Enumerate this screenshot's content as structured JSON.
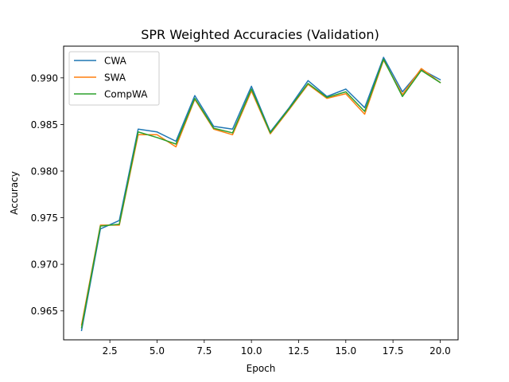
{
  "chart_data": {
    "type": "line",
    "title": "SPR Weighted Accuracies (Validation)",
    "xlabel": "Epoch",
    "ylabel": "Accuracy",
    "xlim": [
      0.05,
      20.95
    ],
    "ylim": [
      0.9619,
      0.9934
    ],
    "xticks": [
      2.5,
      5.0,
      7.5,
      10.0,
      12.5,
      15.0,
      17.5,
      20.0
    ],
    "xtick_labels": [
      "2.5",
      "5.0",
      "7.5",
      "10.0",
      "12.5",
      "15.0",
      "17.5",
      "20.0"
    ],
    "yticks": [
      0.965,
      0.97,
      0.975,
      0.98,
      0.985,
      0.99
    ],
    "ytick_labels": [
      "0.965",
      "0.970",
      "0.975",
      "0.980",
      "0.985",
      "0.990"
    ],
    "grid": false,
    "legend": "top-left",
    "x": [
      1,
      2,
      3,
      4,
      5,
      6,
      7,
      8,
      9,
      10,
      11,
      12,
      13,
      14,
      15,
      16,
      17,
      18,
      19,
      20
    ],
    "series": [
      {
        "name": "CWA",
        "color": "#1f77b4",
        "values": [
          0.9629,
          0.9738,
          0.9747,
          0.9845,
          0.9842,
          0.9832,
          0.9881,
          0.9848,
          0.9845,
          0.9891,
          0.9842,
          0.9868,
          0.9897,
          0.988,
          0.9888,
          0.9868,
          0.9922,
          0.9885,
          0.9909,
          0.9898
        ]
      },
      {
        "name": "SWA",
        "color": "#ff7f0e",
        "values": [
          0.9635,
          0.9742,
          0.9742,
          0.9839,
          0.9839,
          0.9826,
          0.9877,
          0.9845,
          0.9839,
          0.9886,
          0.984,
          0.9866,
          0.9893,
          0.9878,
          0.9883,
          0.9861,
          0.9919,
          0.9882,
          0.991,
          0.9895
        ]
      },
      {
        "name": "CompWA",
        "color": "#2ca02c",
        "values": [
          0.9632,
          0.9741,
          0.9743,
          0.9842,
          0.9836,
          0.9829,
          0.9878,
          0.9846,
          0.9841,
          0.9888,
          0.9841,
          0.9867,
          0.9894,
          0.9879,
          0.9885,
          0.9864,
          0.992,
          0.988,
          0.9908,
          0.9895
        ]
      }
    ]
  }
}
